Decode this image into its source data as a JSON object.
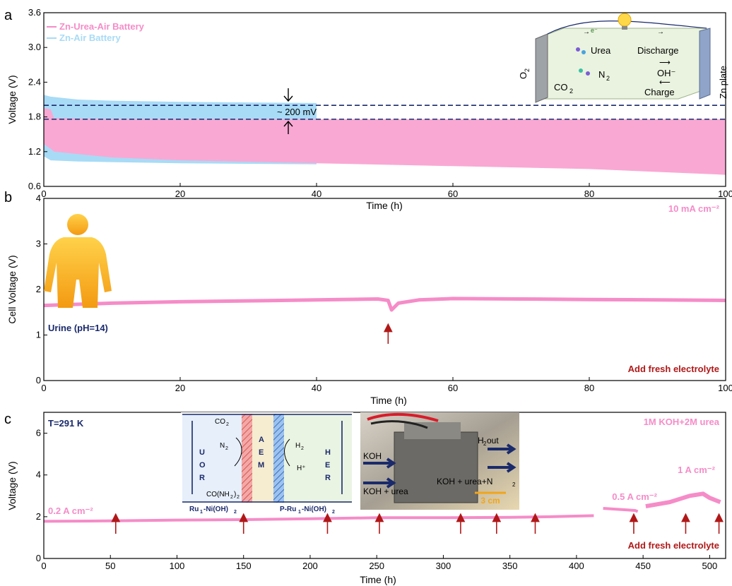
{
  "colors": {
    "pink": "#f58cc8",
    "pink_fill": "#f9a8d4",
    "blue": "#a8dbf6",
    "darkred": "#b01818",
    "navy": "#1a2a6b",
    "orange": "#f2a51a"
  },
  "chart_data": [
    {
      "panel": "a",
      "type": "area",
      "xlabel": "Time (h)",
      "ylabel": "Voltage (V)",
      "xlim": [
        0,
        100
      ],
      "ylim": [
        0.6,
        3.6
      ],
      "xticks": [
        "0",
        "20",
        "40",
        "60",
        "80",
        "100"
      ],
      "yticks": [
        "0.6",
        "1.2",
        "1.8",
        "2.4",
        "3.0",
        "3.6"
      ],
      "series": [
        {
          "name": "Zn-Air Battery",
          "x": [
            0,
            1,
            5,
            10,
            20,
            30,
            40
          ],
          "upper": [
            2.18,
            2.15,
            2.1,
            2.08,
            2.06,
            2.05,
            2.04
          ],
          "lower": [
            1.12,
            1.05,
            1.03,
            1.02,
            1.0,
            0.99,
            0.98
          ]
        },
        {
          "name": "Zn-Urea-Air Battery",
          "x": [
            0,
            1,
            1.5,
            10,
            20,
            40,
            60,
            80,
            90,
            100
          ],
          "upper": [
            1.95,
            1.93,
            1.78,
            1.76,
            1.76,
            1.76,
            1.76,
            1.76,
            1.76,
            1.76
          ],
          "lower": [
            1.33,
            1.25,
            1.2,
            1.1,
            1.05,
            1.0,
            0.95,
            0.9,
            0.85,
            0.8
          ]
        }
      ],
      "dashed_lines": [
        2.0,
        1.76
      ],
      "annotation": "~ 200 mV",
      "inset": {
        "labels": [
          "e⁻",
          "Urea",
          "Discharge",
          "N",
          "2",
          "CO",
          "2",
          "OH⁻",
          "Charge",
          "O",
          "2",
          "Zn plate"
        ]
      }
    },
    {
      "panel": "b",
      "type": "line",
      "xlabel": "Time (h)",
      "ylabel": "Cell Voltage (V)",
      "xlim": [
        0,
        100
      ],
      "ylim": [
        0,
        4
      ],
      "xticks": [
        "0",
        "20",
        "40",
        "60",
        "80",
        "100"
      ],
      "yticks": [
        "0",
        "1",
        "2",
        "3",
        "4"
      ],
      "series": [
        {
          "name": "",
          "x": [
            0,
            10,
            20,
            30,
            40,
            49,
            50.5,
            51,
            52,
            55,
            60,
            70,
            80,
            90,
            100
          ],
          "y": [
            1.65,
            1.7,
            1.73,
            1.75,
            1.77,
            1.79,
            1.76,
            1.55,
            1.7,
            1.77,
            1.8,
            1.79,
            1.78,
            1.77,
            1.76
          ]
        }
      ],
      "arrows_x": [
        50.5
      ],
      "labels": {
        "current": "10 mA cm⁻²",
        "fluid": "Urine (pH=14)",
        "note": "Add fresh electrolyte"
      }
    },
    {
      "panel": "c",
      "type": "line",
      "xlabel": "Time (h)",
      "ylabel": "Voltage (V)",
      "xlim": [
        0,
        512
      ],
      "ylim": [
        0,
        7
      ],
      "xticks": [
        "0",
        "50",
        "100",
        "150",
        "200",
        "250",
        "300",
        "350",
        "400",
        "450",
        "500"
      ],
      "yticks": [
        "0",
        "2",
        "4",
        "6"
      ],
      "series": [
        {
          "name": "",
          "x": [
            0,
            50,
            100,
            150,
            200,
            250,
            300,
            350,
            380,
            413
          ],
          "y": [
            1.78,
            1.8,
            1.84,
            1.86,
            1.9,
            1.95,
            1.95,
            1.97,
            2.0,
            2.05
          ]
        },
        {
          "name": "",
          "x": [
            420,
            432,
            444,
            446
          ],
          "y": [
            2.4,
            2.35,
            2.3,
            2.25
          ]
        },
        {
          "name": "",
          "x": [
            452,
            470,
            485,
            495,
            500,
            508
          ],
          "y": [
            2.5,
            2.7,
            3.0,
            3.1,
            2.9,
            2.7
          ]
        }
      ],
      "arrows_x": [
        54,
        150,
        213,
        252,
        313,
        340,
        369,
        443,
        482,
        507
      ],
      "labels": {
        "temp": "T=291 K",
        "electrolyte": "1M KOH+2M urea",
        "i1": "0.2 A cm⁻²",
        "i2": "0.5 A cm⁻²",
        "i3": "1 A cm⁻²",
        "note": "Add fresh electrolyte"
      },
      "inset_cell": {
        "labels": [
          "CO",
          "2",
          "N",
          "2",
          "U",
          "O",
          "R",
          "A",
          "E",
          "M",
          "H",
          "2",
          "H⁺",
          "H",
          "E",
          "R",
          "CO(NH",
          "2",
          ")",
          "2",
          "Ru",
          "1",
          "-Ni(OH)",
          "2",
          "P-Ru",
          "1",
          "-Ni(OH)",
          "2"
        ]
      },
      "inset_photo": {
        "labels": [
          "KOH",
          "KOH + urea",
          "H",
          "2",
          " out",
          "KOH + urea+N",
          "2",
          "3 cm"
        ]
      }
    }
  ]
}
